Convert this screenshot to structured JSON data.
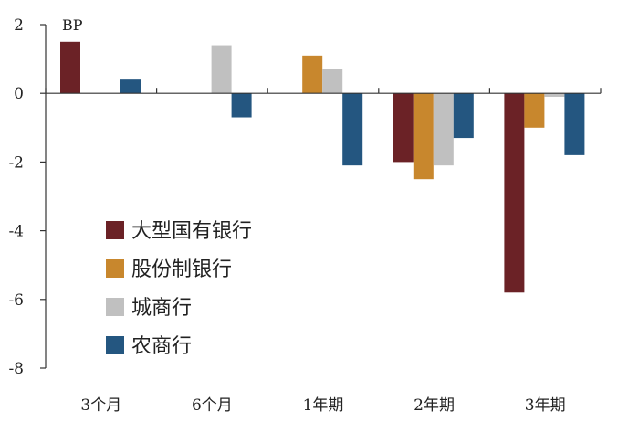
{
  "chart_data": {
    "type": "bar",
    "unit": "BP",
    "categories": [
      "3个月",
      "6个月",
      "1年期",
      "2年期",
      "3年期"
    ],
    "series": [
      {
        "name": "大型国有银行",
        "color": "#6b2226",
        "values": [
          1.5,
          0,
          0,
          -2.0,
          -5.8
        ]
      },
      {
        "name": "股份制银行",
        "color": "#c8872d",
        "values": [
          0,
          0,
          1.1,
          -2.5,
          -1.0
        ]
      },
      {
        "name": "城商行",
        "color": "#c0c0c0",
        "values": [
          0,
          1.4,
          0.7,
          -2.1,
          -0.1
        ]
      },
      {
        "name": "农商行",
        "color": "#245680",
        "values": [
          0.4,
          -0.7,
          -2.1,
          -1.3,
          -1.8
        ]
      }
    ],
    "ylim": [
      -8,
      2
    ],
    "yticks": [
      "2",
      "0",
      "-2",
      "-4",
      "-6",
      "-8"
    ],
    "grid": false,
    "legend": "lower-left"
  }
}
